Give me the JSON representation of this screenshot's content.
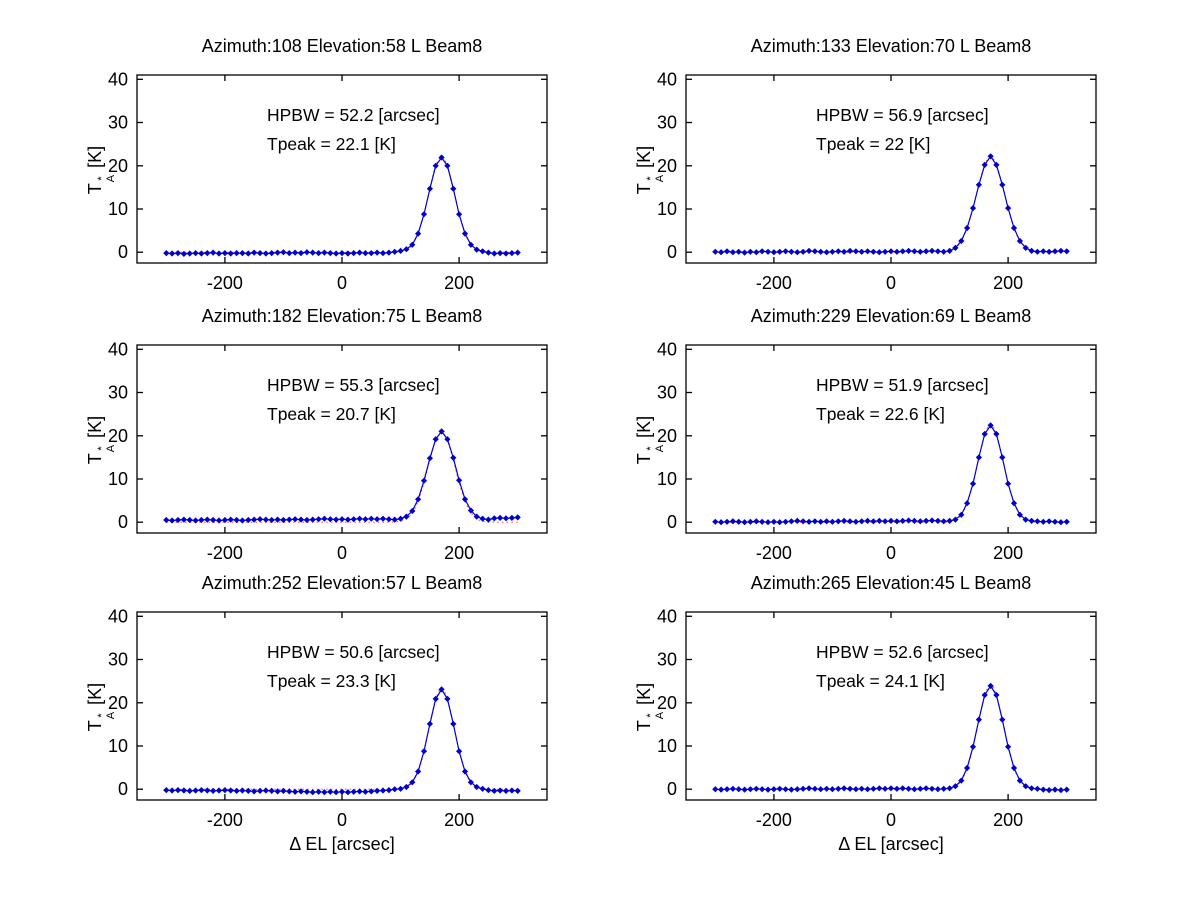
{
  "figure": {
    "background": "#ffffff",
    "grid_rows": 3,
    "grid_cols": 2
  },
  "axes": {
    "xlim": [
      -350,
      350
    ],
    "ylim": [
      -2.5,
      41
    ],
    "xticks": [
      {
        "value": -200,
        "label": "-200"
      },
      {
        "value": 0,
        "label": "0"
      },
      {
        "value": 200,
        "label": "200"
      }
    ],
    "yticks": [
      {
        "value": 0,
        "label": "0"
      },
      {
        "value": 10,
        "label": "10"
      },
      {
        "value": 20,
        "label": "20"
      },
      {
        "value": 30,
        "label": "30"
      },
      {
        "value": 40,
        "label": "40"
      }
    ],
    "xlabel": "Δ EL  [arcsec]",
    "ylabel": {
      "base": "T",
      "sup": "*",
      "sub": "A",
      "unit": "[K]"
    },
    "grid": false,
    "box": true,
    "legend": "none"
  },
  "styles": {
    "data_color": "#0000cc",
    "fit_color": "#ff4444",
    "marker": "diamond",
    "fit_linestyle": "dotted",
    "axis_color": "#000000"
  },
  "x_arcsec": [
    -300,
    -290,
    -280,
    -270,
    -260,
    -250,
    -240,
    -230,
    -220,
    -210,
    -200,
    -190,
    -180,
    -170,
    -160,
    -150,
    -140,
    -130,
    -120,
    -110,
    -100,
    -90,
    -80,
    -70,
    -60,
    -50,
    -40,
    -30,
    -20,
    -10,
    0,
    10,
    20,
    30,
    40,
    50,
    60,
    70,
    80,
    90,
    100,
    110,
    120,
    130,
    140,
    150,
    160,
    170,
    180,
    190,
    200,
    210,
    220,
    230,
    240,
    250,
    260,
    270,
    280,
    290,
    300
  ],
  "chart_data": [
    {
      "type": "line",
      "title": "Azimuth:108 Elevation:58 L Beam8",
      "azimuth": 108,
      "elevation": 58,
      "band": "L",
      "beam": "Beam8",
      "annotations": [
        "HPBW = 52.2 [arcsec]",
        "Tpeak = 22.1 [K]"
      ],
      "hpbw_arcsec": 52.2,
      "tpeak_k": 22.1,
      "fit": {
        "center_arcsec": 170,
        "hpbw_arcsec": 52.2,
        "peak_k": 22.1
      },
      "y_k": [
        -0.2,
        -0.3,
        -0.2,
        -0.4,
        -0.3,
        -0.2,
        -0.3,
        -0.2,
        -0.1,
        -0.3,
        -0.2,
        -0.3,
        -0.2,
        -0.2,
        -0.3,
        -0.1,
        -0.2,
        -0.3,
        -0.2,
        -0.1,
        0.0,
        -0.2,
        -0.1,
        -0.2,
        0.0,
        -0.1,
        -0.2,
        -0.1,
        -0.2,
        -0.3,
        -0.2,
        -0.3,
        -0.2,
        -0.1,
        -0.2,
        -0.2,
        -0.1,
        -0.2,
        -0.1,
        0.1,
        0.3,
        0.7,
        1.7,
        4.3,
        8.8,
        14.7,
        20.0,
        21.9,
        20.0,
        14.7,
        8.8,
        4.3,
        1.7,
        0.6,
        0.2,
        -0.1,
        -0.3,
        -0.2,
        -0.3,
        -0.2,
        -0.1
      ]
    },
    {
      "type": "line",
      "title": "Azimuth:133 Elevation:70 L Beam8",
      "azimuth": 133,
      "elevation": 70,
      "band": "L",
      "beam": "Beam8",
      "annotations": [
        "HPBW = 56.9 [arcsec]",
        "Tpeak = 22 [K]"
      ],
      "hpbw_arcsec": 56.9,
      "tpeak_k": 22,
      "fit": {
        "center_arcsec": 170,
        "hpbw_arcsec": 56.9,
        "peak_k": 22
      },
      "y_k": [
        0.1,
        0.0,
        0.2,
        0.0,
        0.1,
        -0.1,
        0.1,
        0.0,
        0.2,
        0.1,
        0.0,
        0.1,
        0.2,
        0.1,
        0.0,
        0.1,
        0.3,
        0.2,
        0.1,
        0.0,
        0.1,
        0.2,
        0.1,
        0.3,
        0.2,
        0.1,
        0.2,
        0.1,
        0.0,
        0.1,
        0.2,
        0.1,
        0.2,
        0.3,
        0.2,
        0.1,
        0.2,
        0.3,
        0.2,
        0.1,
        0.3,
        1.0,
        2.6,
        5.6,
        10.2,
        15.6,
        20.2,
        22.2,
        20.2,
        15.6,
        10.2,
        5.6,
        2.6,
        1.0,
        0.3,
        0.1,
        0.2,
        0.1,
        0.2,
        0.3,
        0.2
      ]
    },
    {
      "type": "line",
      "title": "Azimuth:182 Elevation:75 L Beam8",
      "azimuth": 182,
      "elevation": 75,
      "band": "L",
      "beam": "Beam8",
      "annotations": [
        "HPBW = 55.3 [arcsec]",
        "Tpeak = 20.7 [K]"
      ],
      "hpbw_arcsec": 55.3,
      "tpeak_k": 20.7,
      "fit": {
        "center_arcsec": 170,
        "hpbw_arcsec": 55.3,
        "peak_k": 20.7
      },
      "y_k": [
        0.5,
        0.4,
        0.5,
        0.6,
        0.5,
        0.4,
        0.5,
        0.6,
        0.5,
        0.4,
        0.5,
        0.6,
        0.5,
        0.4,
        0.5,
        0.6,
        0.7,
        0.6,
        0.5,
        0.6,
        0.5,
        0.6,
        0.7,
        0.6,
        0.5,
        0.6,
        0.7,
        0.8,
        0.7,
        0.6,
        0.7,
        0.6,
        0.7,
        0.8,
        0.7,
        0.8,
        0.7,
        0.8,
        0.7,
        0.6,
        0.8,
        1.3,
        2.6,
        5.3,
        9.6,
        14.8,
        19.2,
        21.0,
        19.2,
        14.9,
        9.7,
        5.3,
        2.7,
        1.3,
        0.8,
        0.6,
        0.9,
        1.0,
        0.9,
        1.0,
        1.1
      ]
    },
    {
      "type": "line",
      "title": "Azimuth:229 Elevation:69 L Beam8",
      "azimuth": 229,
      "elevation": 69,
      "band": "L",
      "beam": "Beam8",
      "annotations": [
        "HPBW = 51.9 [arcsec]",
        "Tpeak = 22.6 [K]"
      ],
      "hpbw_arcsec": 51.9,
      "tpeak_k": 22.6,
      "fit": {
        "center_arcsec": 170,
        "hpbw_arcsec": 51.9,
        "peak_k": 22.6
      },
      "y_k": [
        0.1,
        0.0,
        0.1,
        0.2,
        0.1,
        0.0,
        0.1,
        0.2,
        0.1,
        0.0,
        0.1,
        0.0,
        0.1,
        0.2,
        0.3,
        0.2,
        0.1,
        0.2,
        0.1,
        0.2,
        0.1,
        0.2,
        0.3,
        0.2,
        0.1,
        0.2,
        0.3,
        0.2,
        0.3,
        0.2,
        0.3,
        0.2,
        0.3,
        0.4,
        0.3,
        0.2,
        0.3,
        0.4,
        0.3,
        0.2,
        0.3,
        0.6,
        1.7,
        4.4,
        8.9,
        15.0,
        20.4,
        22.4,
        20.4,
        15.0,
        8.9,
        4.4,
        1.7,
        0.6,
        0.3,
        0.2,
        0.1,
        0.2,
        0.1,
        0.0,
        0.1
      ]
    },
    {
      "type": "line",
      "title": "Azimuth:252 Elevation:57 L Beam8",
      "azimuth": 252,
      "elevation": 57,
      "band": "L",
      "beam": "Beam8",
      "annotations": [
        "HPBW = 50.6 [arcsec]",
        "Tpeak = 23.3 [K]"
      ],
      "hpbw_arcsec": 50.6,
      "tpeak_k": 23.3,
      "fit": {
        "center_arcsec": 170,
        "hpbw_arcsec": 50.6,
        "peak_k": 23.3
      },
      "y_k": [
        -0.2,
        -0.3,
        -0.2,
        -0.3,
        -0.4,
        -0.3,
        -0.2,
        -0.3,
        -0.4,
        -0.3,
        -0.2,
        -0.3,
        -0.4,
        -0.3,
        -0.4,
        -0.5,
        -0.4,
        -0.3,
        -0.4,
        -0.5,
        -0.4,
        -0.5,
        -0.6,
        -0.5,
        -0.6,
        -0.7,
        -0.6,
        -0.7,
        -0.6,
        -0.7,
        -0.6,
        -0.7,
        -0.6,
        -0.5,
        -0.6,
        -0.5,
        -0.4,
        -0.3,
        -0.2,
        0.0,
        0.1,
        0.5,
        1.6,
        4.1,
        8.8,
        15.1,
        20.9,
        23.1,
        20.9,
        15.1,
        8.8,
        4.1,
        1.6,
        0.5,
        0.1,
        -0.2,
        -0.4,
        -0.3,
        -0.4,
        -0.3,
        -0.4
      ]
    },
    {
      "type": "line",
      "title": "Azimuth:265 Elevation:45 L Beam8",
      "azimuth": 265,
      "elevation": 45,
      "band": "L",
      "beam": "Beam8",
      "annotations": [
        "HPBW = 52.6 [arcsec]",
        "Tpeak = 24.1 [K]"
      ],
      "hpbw_arcsec": 52.6,
      "tpeak_k": 24.1,
      "fit": {
        "center_arcsec": 170,
        "hpbw_arcsec": 52.6,
        "peak_k": 24.1
      },
      "y_k": [
        0.0,
        -0.1,
        0.0,
        0.1,
        0.0,
        -0.1,
        0.0,
        0.1,
        0.0,
        -0.1,
        0.0,
        0.1,
        0.0,
        -0.1,
        0.0,
        0.1,
        0.2,
        0.1,
        0.0,
        0.1,
        0.0,
        0.1,
        0.2,
        0.1,
        0.0,
        0.1,
        0.0,
        0.1,
        0.2,
        0.1,
        0.2,
        0.1,
        0.2,
        0.1,
        0.0,
        0.1,
        0.2,
        0.1,
        0.0,
        0.1,
        0.2,
        0.7,
        2.0,
        4.9,
        9.8,
        16.1,
        21.8,
        23.9,
        21.8,
        16.1,
        9.8,
        4.9,
        2.0,
        0.7,
        0.2,
        0.1,
        -0.1,
        -0.2,
        -0.1,
        -0.2,
        -0.1
      ]
    }
  ]
}
